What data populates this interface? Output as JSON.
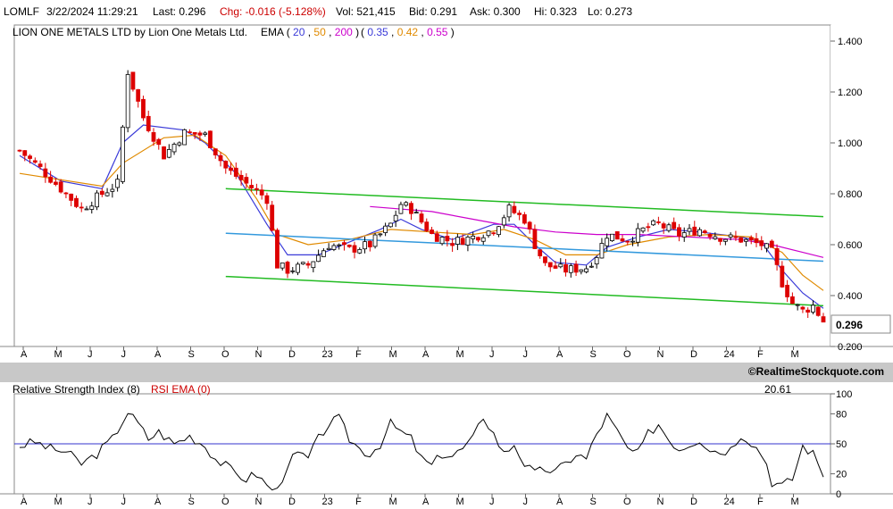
{
  "quote": {
    "symbol": "LOMLF",
    "datetime": "3/22/2024 11:29:21",
    "last": "Last: 0.296",
    "chg": "Chg: -0.016 (-5.128%)",
    "vol": "Vol: 521,415",
    "bid": "Bid: 0.291",
    "ask": "Ask: 0.300",
    "hi": "Hi: 0.323",
    "lo": "Lo: 0.273"
  },
  "legend": {
    "company": "LION ONE METALS LTD by Lion One Metals Ltd.",
    "ema_label": "EMA",
    "ema_periods": [
      "20",
      "50",
      "200"
    ],
    "channel_label_values": [
      "0.35",
      "0.42",
      "0.55"
    ]
  },
  "colors": {
    "ema20": "#3a3ad8",
    "ema50": "#e08a00",
    "ema200": "#cc00cc",
    "channel_outer": "#22bb22",
    "channel_mid": "#3399dd",
    "up_candle": "#000000",
    "down_candle": "#dd0000",
    "rsi_line": "#000000",
    "rsi_mid": "#3333cc"
  },
  "credit": "©RealtimeStockquote.com",
  "chart_data": [
    {
      "type": "candlestick",
      "title": "LION ONE METALS LTD by Lion One Metals Ltd.",
      "ylim": [
        0.2,
        1.4
      ],
      "y_ticks": [
        "1.400",
        "1.200",
        "1.000",
        "0.800",
        "0.600",
        "0.400",
        "0.200"
      ],
      "x_ticks": [
        "A",
        "M",
        "J",
        "J",
        "A",
        "S",
        "O",
        "N",
        "D",
        "23",
        "F",
        "M",
        "A",
        "M",
        "J",
        "J",
        "A",
        "S",
        "O",
        "N",
        "D",
        "24",
        "F",
        "M"
      ],
      "last_price_label": "0.296",
      "grid": false,
      "close_series": {
        "name": "close",
        "points": [
          [
            0,
            0.97
          ],
          [
            4,
            0.9
          ],
          [
            8,
            0.82
          ],
          [
            12,
            0.74
          ],
          [
            16,
            0.8
          ],
          [
            19,
            0.84
          ],
          [
            21,
            1.28
          ],
          [
            24,
            1.1
          ],
          [
            28,
            0.95
          ],
          [
            32,
            1.04
          ],
          [
            36,
            1.03
          ],
          [
            40,
            0.9
          ],
          [
            44,
            0.84
          ],
          [
            48,
            0.78
          ],
          [
            50,
            0.52
          ],
          [
            52,
            0.5
          ],
          [
            56,
            0.52
          ],
          [
            60,
            0.6
          ],
          [
            64,
            0.58
          ],
          [
            68,
            0.6
          ],
          [
            72,
            0.68
          ],
          [
            74,
            0.76
          ],
          [
            76,
            0.74
          ],
          [
            80,
            0.64
          ],
          [
            84,
            0.61
          ],
          [
            88,
            0.63
          ],
          [
            92,
            0.66
          ],
          [
            95,
            0.74
          ],
          [
            98,
            0.7
          ],
          [
            100,
            0.6
          ],
          [
            102,
            0.52
          ],
          [
            106,
            0.5
          ],
          [
            110,
            0.51
          ],
          [
            112,
            0.56
          ],
          [
            114,
            0.64
          ],
          [
            118,
            0.62
          ],
          [
            122,
            0.67
          ],
          [
            124,
            0.68
          ],
          [
            128,
            0.64
          ],
          [
            132,
            0.66
          ],
          [
            136,
            0.63
          ],
          [
            140,
            0.62
          ],
          [
            144,
            0.6
          ],
          [
            146,
            0.57
          ],
          [
            148,
            0.45
          ],
          [
            150,
            0.37
          ],
          [
            152,
            0.34
          ],
          [
            154,
            0.36
          ],
          [
            156,
            0.3
          ]
        ]
      },
      "series": [
        {
          "name": "20",
          "points": [
            [
              0,
              0.95
            ],
            [
              8,
              0.85
            ],
            [
              16,
              0.82
            ],
            [
              20,
              1.0
            ],
            [
              24,
              1.07
            ],
            [
              32,
              1.05
            ],
            [
              36,
              1.0
            ],
            [
              42,
              0.88
            ],
            [
              48,
              0.68
            ],
            [
              52,
              0.56
            ],
            [
              58,
              0.56
            ],
            [
              64,
              0.61
            ],
            [
              70,
              0.66
            ],
            [
              74,
              0.7
            ],
            [
              78,
              0.66
            ],
            [
              84,
              0.62
            ],
            [
              92,
              0.68
            ],
            [
              96,
              0.68
            ],
            [
              100,
              0.6
            ],
            [
              104,
              0.53
            ],
            [
              110,
              0.52
            ],
            [
              114,
              0.59
            ],
            [
              120,
              0.63
            ],
            [
              126,
              0.66
            ],
            [
              132,
              0.65
            ],
            [
              140,
              0.63
            ],
            [
              144,
              0.61
            ],
            [
              148,
              0.5
            ],
            [
              152,
              0.41
            ],
            [
              156,
              0.35
            ]
          ]
        },
        {
          "name": "50",
          "points": [
            [
              0,
              0.88
            ],
            [
              16,
              0.83
            ],
            [
              20,
              0.92
            ],
            [
              28,
              1.02
            ],
            [
              34,
              1.03
            ],
            [
              40,
              0.95
            ],
            [
              46,
              0.78
            ],
            [
              50,
              0.64
            ],
            [
              56,
              0.6
            ],
            [
              64,
              0.62
            ],
            [
              72,
              0.66
            ],
            [
              80,
              0.65
            ],
            [
              88,
              0.64
            ],
            [
              94,
              0.66
            ],
            [
              100,
              0.62
            ],
            [
              106,
              0.56
            ],
            [
              112,
              0.56
            ],
            [
              118,
              0.6
            ],
            [
              126,
              0.63
            ],
            [
              134,
              0.64
            ],
            [
              142,
              0.63
            ],
            [
              148,
              0.57
            ],
            [
              152,
              0.48
            ],
            [
              156,
              0.42
            ]
          ]
        },
        {
          "name": "200",
          "points": [
            [
              68,
              0.75
            ],
            [
              80,
              0.73
            ],
            [
              88,
              0.7
            ],
            [
              96,
              0.67
            ],
            [
              104,
              0.65
            ],
            [
              112,
              0.64
            ],
            [
              120,
              0.64
            ],
            [
              130,
              0.63
            ],
            [
              140,
              0.62
            ],
            [
              146,
              0.6
            ],
            [
              152,
              0.57
            ],
            [
              156,
              0.55
            ]
          ]
        },
        {
          "name": "channel-upper",
          "points": [
            [
              40,
              0.82
            ],
            [
              156,
              0.71
            ]
          ]
        },
        {
          "name": "channel-middle",
          "points": [
            [
              40,
              0.645
            ],
            [
              156,
              0.535
            ]
          ]
        },
        {
          "name": "channel-lower",
          "points": [
            [
              40,
              0.475
            ],
            [
              156,
              0.36
            ]
          ]
        }
      ]
    },
    {
      "type": "line",
      "title": "Relative Strength Index (8)",
      "secondary_label": "RSI EMA (0)",
      "last_value_label": "20.61",
      "ylim": [
        0,
        100
      ],
      "y_ticks": [
        "100",
        "80",
        "50",
        "20",
        "0"
      ],
      "reference_line": 50,
      "x_ticks": [
        "A",
        "M",
        "J",
        "J",
        "A",
        "S",
        "O",
        "N",
        "D",
        "23",
        "F",
        "M",
        "A",
        "M",
        "J",
        "J",
        "A",
        "S",
        "O",
        "N",
        "D",
        "24",
        "F",
        "M"
      ],
      "series": [
        {
          "name": "RSI",
          "points": [
            [
              0,
              48
            ],
            [
              3,
              52
            ],
            [
              6,
              45
            ],
            [
              9,
              42
            ],
            [
              12,
              30
            ],
            [
              15,
              40
            ],
            [
              18,
              55
            ],
            [
              21,
              82
            ],
            [
              23,
              70
            ],
            [
              25,
              55
            ],
            [
              27,
              62
            ],
            [
              30,
              50
            ],
            [
              33,
              58
            ],
            [
              36,
              48
            ],
            [
              38,
              35
            ],
            [
              40,
              28
            ],
            [
              42,
              20
            ],
            [
              44,
              15
            ],
            [
              46,
              20
            ],
            [
              48,
              8
            ],
            [
              50,
              3
            ],
            [
              52,
              30
            ],
            [
              54,
              40
            ],
            [
              56,
              35
            ],
            [
              58,
              55
            ],
            [
              60,
              70
            ],
            [
              62,
              75
            ],
            [
              64,
              55
            ],
            [
              66,
              45
            ],
            [
              68,
              40
            ],
            [
              70,
              50
            ],
            [
              72,
              70
            ],
            [
              74,
              62
            ],
            [
              76,
              55
            ],
            [
              78,
              35
            ],
            [
              80,
              28
            ],
            [
              82,
              40
            ],
            [
              84,
              38
            ],
            [
              86,
              45
            ],
            [
              88,
              55
            ],
            [
              90,
              78
            ],
            [
              92,
              60
            ],
            [
              94,
              40
            ],
            [
              96,
              50
            ],
            [
              98,
              30
            ],
            [
              100,
              20
            ],
            [
              102,
              25
            ],
            [
              104,
              22
            ],
            [
              106,
              30
            ],
            [
              108,
              40
            ],
            [
              110,
              35
            ],
            [
              112,
              60
            ],
            [
              114,
              78
            ],
            [
              116,
              62
            ],
            [
              118,
              45
            ],
            [
              120,
              40
            ],
            [
              122,
              60
            ],
            [
              124,
              70
            ],
            [
              126,
              55
            ],
            [
              128,
              45
            ],
            [
              130,
              50
            ],
            [
              132,
              55
            ],
            [
              134,
              45
            ],
            [
              136,
              42
            ],
            [
              138,
              45
            ],
            [
              140,
              60
            ],
            [
              142,
              52
            ],
            [
              144,
              40
            ],
            [
              145,
              30
            ],
            [
              146,
              12
            ],
            [
              148,
              8
            ],
            [
              150,
              15
            ],
            [
              152,
              48
            ],
            [
              154,
              40
            ],
            [
              156,
              20
            ]
          ]
        }
      ]
    }
  ]
}
